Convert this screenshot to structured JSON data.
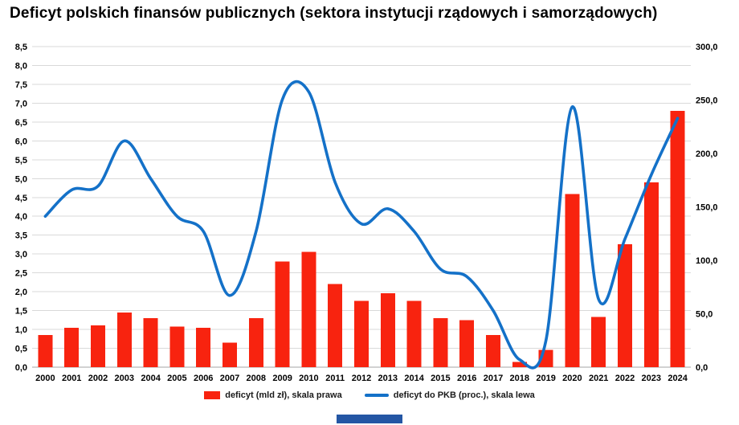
{
  "title": "Deficyt polskich finansów publicznych (sektora instytucji rządowych i samorządowych)",
  "legend": {
    "bar_label": "deficyt (mld zł), skala prawa",
    "line_label": "deficyt do PKB (proc.), skala lewa"
  },
  "colors": {
    "bar": "#f8230f",
    "line": "#1471c8",
    "grid": "#d9d9d9",
    "axis": "#a6a6a6",
    "text": "#000000",
    "footer_bar": "#2456a4"
  },
  "chart_data": {
    "type": "combo-bar-line",
    "title": "Deficyt polskich finansów publicznych (sektora instytucji rządowych i samorządowych)",
    "categories": [
      "2000",
      "2001",
      "2002",
      "2003",
      "2004",
      "2005",
      "2006",
      "2007",
      "2008",
      "2009",
      "2010",
      "2011",
      "2012",
      "2013",
      "2014",
      "2015",
      "2016",
      "2017",
      "2018",
      "2019",
      "2020",
      "2021",
      "2022",
      "2023",
      "2024"
    ],
    "series": [
      {
        "name": "deficyt (mld zł), skala prawa",
        "type": "bar",
        "axis": "right",
        "values": [
          30,
          37,
          39,
          51,
          46,
          38,
          37,
          23,
          46,
          99,
          108,
          78,
          62,
          69,
          62,
          46,
          44,
          30,
          5,
          16,
          162,
          47,
          115,
          173,
          240
        ]
      },
      {
        "name": "deficyt do PKB (proc.), skala lewa",
        "type": "line",
        "axis": "left",
        "values": [
          4.0,
          4.7,
          4.8,
          6.0,
          5.0,
          4.0,
          3.6,
          1.9,
          3.6,
          7.1,
          7.3,
          4.9,
          3.8,
          4.2,
          3.6,
          2.6,
          2.4,
          1.5,
          0.2,
          0.7,
          6.9,
          1.8,
          3.4,
          5.1,
          6.6
        ]
      }
    ],
    "left_axis": {
      "min": 0,
      "max": 8.5,
      "step": 0.5,
      "ticks": [
        "0,0",
        "0,5",
        "1,0",
        "1,5",
        "2,0",
        "2,5",
        "3,0",
        "3,5",
        "4,0",
        "4,5",
        "5,0",
        "5,5",
        "6,0",
        "6,5",
        "7,0",
        "7,5",
        "8,0",
        "8,5"
      ]
    },
    "right_axis": {
      "min": 0,
      "max": 300,
      "step": 50,
      "ticks": [
        "0,0",
        "50,0",
        "100,0",
        "150,0",
        "200,0",
        "250,0",
        "300,0"
      ]
    },
    "grid": true,
    "legend_position": "bottom"
  }
}
